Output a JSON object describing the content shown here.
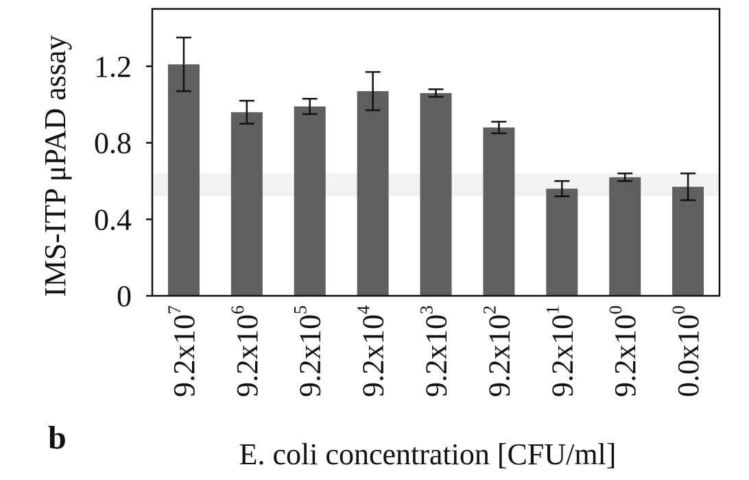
{
  "panel_label": "b",
  "chart_data": {
    "type": "bar",
    "categories": [
      {
        "mantissa": "9.2x10",
        "exp": "7"
      },
      {
        "mantissa": "9.2x10",
        "exp": "6"
      },
      {
        "mantissa": "9.2x10",
        "exp": "5"
      },
      {
        "mantissa": "9.2x10",
        "exp": "4"
      },
      {
        "mantissa": "9.2x10",
        "exp": "3"
      },
      {
        "mantissa": "9.2x10",
        "exp": "2"
      },
      {
        "mantissa": "9.2x10",
        "exp": "1"
      },
      {
        "mantissa": "9.2x10",
        "exp": "0"
      },
      {
        "mantissa": "0.0x10",
        "exp": "0"
      }
    ],
    "values": [
      1.21,
      0.96,
      0.99,
      1.07,
      1.06,
      0.88,
      0.56,
      0.62,
      0.57
    ],
    "errors": [
      0.14,
      0.06,
      0.04,
      0.1,
      0.02,
      0.03,
      0.04,
      0.02,
      0.07
    ],
    "threshold_band": [
      0.52,
      0.64
    ],
    "xlabel": "E. coli concentration [CFU/ml]",
    "ylabel": "IMS-ITP μPAD assay",
    "ylim": [
      0,
      1.5
    ],
    "yticks": [
      "0",
      "0.4",
      "0.8",
      "1.2"
    ],
    "ytick_values": [
      0,
      0.4,
      0.8,
      1.2
    ],
    "bar_color": "#5f5f5f",
    "band_color": "#f2f2f2",
    "grid": false,
    "legend": "none"
  }
}
